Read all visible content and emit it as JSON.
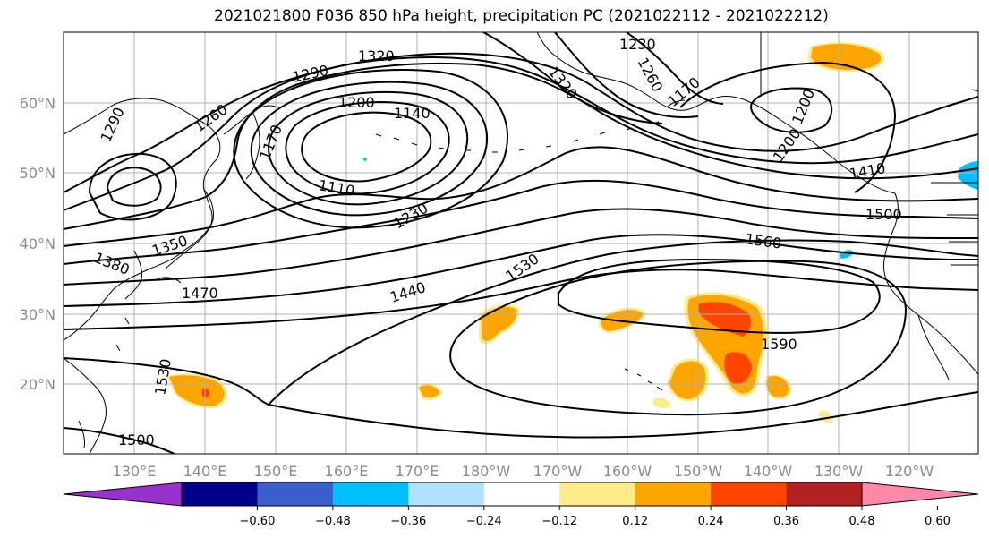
{
  "title": "2021021800 F036 850 hPa height, precipitation PC (2021022112 - 2021022212)",
  "lon_labels": [
    "130°E",
    "140°E",
    "150°E",
    "160°E",
    "170°E",
    "180°W",
    "170°W",
    "160°W",
    "150°W",
    "140°W",
    "130°W",
    "120°W"
  ],
  "lat_labels": [
    "60°N",
    "50°N",
    "40°N",
    "30°N",
    "20°N"
  ],
  "colorbar": {
    "colors": [
      "#9932cc",
      "#00008b",
      "#3a5fcd",
      "#00bfff",
      "#b0e2ff",
      "#ffffff",
      "#ffeb8a",
      "#ffa500",
      "#ff4500",
      "#b22222",
      "#ff88aa"
    ],
    "labels": [
      "−0.60",
      "−0.48",
      "−0.36",
      "−0.24",
      "−0.12",
      "0.12",
      "0.24",
      "0.36",
      "0.48",
      "0.60"
    ]
  },
  "contour_labels": [
    "1320",
    "1230",
    "1290",
    "1320",
    "1260",
    "1170",
    "1200",
    "1290",
    "1260",
    "1200",
    "1140",
    "1170",
    "1200",
    "1110",
    "1410",
    "1230",
    "1500",
    "1560",
    "1350",
    "1380",
    "1530",
    "1470",
    "1440",
    "1590",
    "1530",
    "1500"
  ]
}
